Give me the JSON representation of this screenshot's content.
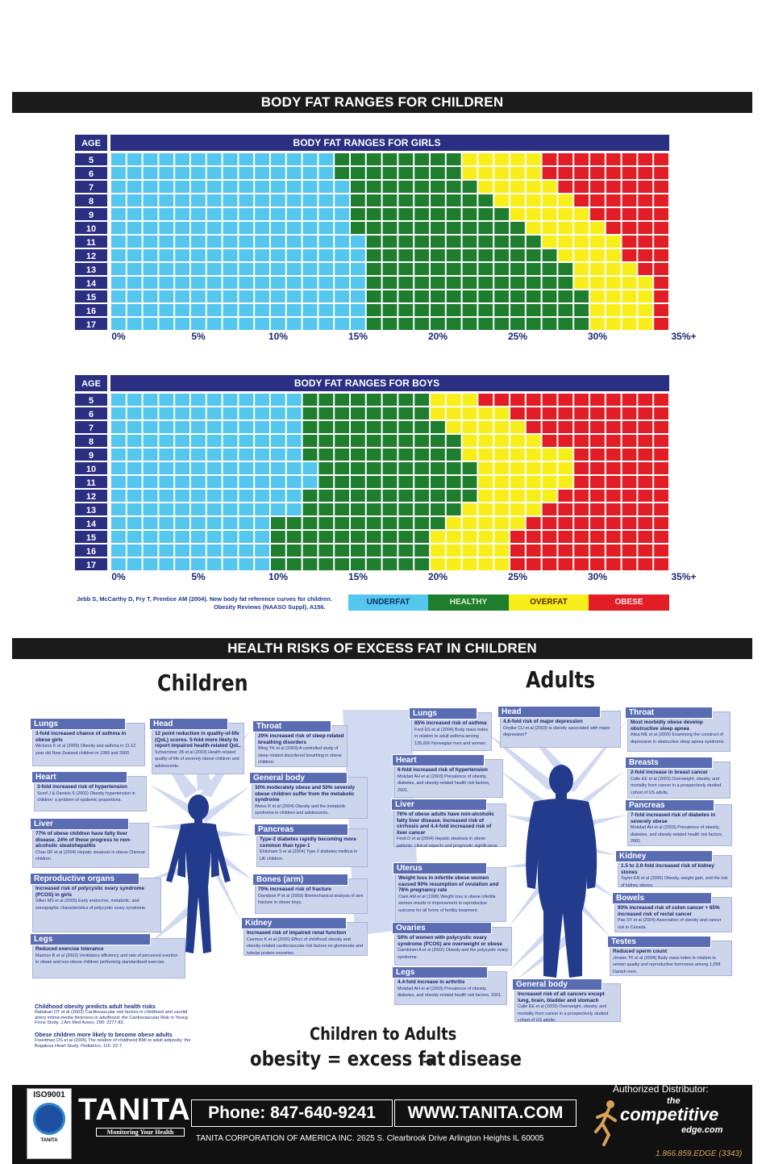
{
  "banner_top": "BODY FAT RANGES FOR CHILDREN",
  "banner_health": "HEALTH RISKS OF EXCESS FAT IN CHILDREN",
  "colors": {
    "underfat": "#55c6ee",
    "healthy": "#1f7d2e",
    "overfat": "#f7ee1a",
    "obese": "#e21d26",
    "header": "#2a2f82",
    "panel": "#5a6db3"
  },
  "chart_data": [
    {
      "type": "heatmap",
      "title": "BODY FAT RANGES FOR GIRLS",
      "ylabel": "AGE",
      "ages": [
        "5",
        "6",
        "7",
        "8",
        "9",
        "10",
        "11",
        "12",
        "13",
        "14",
        "15",
        "16",
        "17"
      ],
      "x_ticks": [
        "0%",
        "5%",
        "10%",
        "15%",
        "20%",
        "25%",
        "30%",
        "35%+"
      ],
      "xlim": [
        0,
        35
      ],
      "thresholds_percent": [
        {
          "age": "5",
          "healthy": 13.8,
          "overfat": 21.8,
          "obese": 26.8
        },
        {
          "age": "6",
          "healthy": 13.8,
          "overfat": 21.8,
          "obese": 26.8
        },
        {
          "age": "7",
          "healthy": 14.8,
          "overfat": 22.8,
          "obese": 27.8
        },
        {
          "age": "8",
          "healthy": 14.8,
          "overfat": 23.8,
          "obese": 28.8
        },
        {
          "age": "9",
          "healthy": 14.8,
          "overfat": 24.8,
          "obese": 29.8
        },
        {
          "age": "10",
          "healthy": 14.8,
          "overfat": 25.8,
          "obese": 30.8
        },
        {
          "age": "11",
          "healthy": 15.8,
          "overfat": 26.8,
          "obese": 31.8
        },
        {
          "age": "12",
          "healthy": 15.8,
          "overfat": 27.8,
          "obese": 31.8
        },
        {
          "age": "13",
          "healthy": 15.8,
          "overfat": 28.8,
          "obese": 32.8
        },
        {
          "age": "14",
          "healthy": 15.8,
          "overfat": 28.8,
          "obese": 33.8
        },
        {
          "age": "15",
          "healthy": 15.8,
          "overfat": 29.8,
          "obese": 33.8
        },
        {
          "age": "16",
          "healthy": 15.8,
          "overfat": 29.8,
          "obese": 33.8
        },
        {
          "age": "17",
          "healthy": 15.8,
          "overfat": 29.8,
          "obese": 33.8
        }
      ]
    },
    {
      "type": "heatmap",
      "title": "BODY FAT RANGES FOR BOYS",
      "ylabel": "AGE",
      "ages": [
        "5",
        "6",
        "7",
        "8",
        "9",
        "10",
        "11",
        "12",
        "13",
        "14",
        "15",
        "16",
        "17"
      ],
      "x_ticks": [
        "0%",
        "5%",
        "10%",
        "15%",
        "20%",
        "25%",
        "30%",
        "35%+"
      ],
      "xlim": [
        0,
        35
      ],
      "thresholds_percent": [
        {
          "age": "5",
          "healthy": 11.8,
          "overfat": 19.8,
          "obese": 22.8
        },
        {
          "age": "6",
          "healthy": 11.8,
          "overfat": 19.8,
          "obese": 24.8
        },
        {
          "age": "7",
          "healthy": 11.8,
          "overfat": 20.8,
          "obese": 25.8
        },
        {
          "age": "8",
          "healthy": 11.8,
          "overfat": 21.8,
          "obese": 26.8
        },
        {
          "age": "9",
          "healthy": 11.8,
          "overfat": 21.8,
          "obese": 28.8
        },
        {
          "age": "10",
          "healthy": 12.8,
          "overfat": 22.8,
          "obese": 28.8
        },
        {
          "age": "11",
          "healthy": 12.8,
          "overfat": 22.8,
          "obese": 28.8
        },
        {
          "age": "12",
          "healthy": 11.8,
          "overfat": 22.8,
          "obese": 27.8
        },
        {
          "age": "13",
          "healthy": 11.8,
          "overfat": 21.8,
          "obese": 26.8
        },
        {
          "age": "14",
          "healthy": 9.8,
          "overfat": 20.8,
          "obese": 25.8
        },
        {
          "age": "15",
          "healthy": 9.8,
          "overfat": 19.8,
          "obese": 24.8
        },
        {
          "age": "16",
          "healthy": 9.8,
          "overfat": 19.8,
          "obese": 24.8
        },
        {
          "age": "17",
          "healthy": 9.8,
          "overfat": 19.8,
          "obese": 24.8
        }
      ]
    }
  ],
  "legend": [
    "UNDERFAT",
    "HEALTHY",
    "OVERFAT",
    "OBESE"
  ],
  "citation_line1": "Jebb S, McCarthy D, Fry T, Prentice AM (2004). New body fat reference curves for children.",
  "citation_line2": "Obesity Reviews (NAASO Suppl), A156.",
  "children_title": "Children",
  "adults_title": "Adults",
  "child_risks": [
    {
      "name": "Lungs",
      "text": "3-fold increased chance of asthma in obese girls",
      "cite": "Wickens K et al (2005) Obesity and asthma in 11-12 year old New Zealand children in 1989 and 2000."
    },
    {
      "name": "Head",
      "text": "12 point reduction in quality-of-life (QoL) scores. 5-fold more likely to report impaired health-related QoL.",
      "cite": "Schwimmer JB et al (2003) Health-related quality of life of severely obese children and adolescents."
    },
    {
      "name": "Throat",
      "text": "20% increased risk of sleep-related breathing disorders",
      "cite": "Wing YK et al (2003) A controlled study of sleep related disordered breathing in obese children."
    },
    {
      "name": "Heart",
      "text": "3-fold increased risk of hypertension",
      "cite": "Sorof J & Daniels S (2002) Obesity hypertension in children: a problem of epidemic proportions."
    },
    {
      "name": "General body",
      "text": "30% moderately obese and 50% severely obese children suffer from the metabolic syndrome",
      "cite": "Weiss R et al (2004) Obesity and the metabolic syndrome in children and adolescents."
    },
    {
      "name": "Liver",
      "text": "77% of obese children have fatty liver disease. 24% of these progress to non-alcoholic steatohepatitis",
      "cite": "Chan DF et al (2004) Hepatic steatosis in obese Chinese children."
    },
    {
      "name": "Pancreas",
      "text": "Type-2 diabetes rapidly becoming more common than type-1",
      "cite": "Ehtisham S et al (2004) Type 2 diabetes mellitus in UK children."
    },
    {
      "name": "Reproductive organs",
      "text": "Increased risk of polycystic ovary syndrome (PCOS) in girls",
      "cite": "Sillen MS et al (2003) Early endocrine, metabolic, and sonographic characteristics of polycystic ovary syndrome."
    },
    {
      "name": "Bones (arm)",
      "text": "70% increased risk of fracture",
      "cite": "Davidson P et al (2003) Biomechanical analysis of arm fracture in obese boys."
    },
    {
      "name": "Kidney",
      "text": "Increased risk of impaired renal function",
      "cite": "Csernus K et al (2005) Effect of childhood obesity and obesity-related cardiovascular risk factors on glomerular and tubular protein excretion."
    },
    {
      "name": "Legs",
      "text": "Reduced exercise tolerance",
      "cite": "Marinov B et al (2002) Ventilatory efficiency and rate of perceived exertion in obese and non-obese children performing standardized exercise."
    }
  ],
  "adult_risks": [
    {
      "name": "Lungs",
      "text": "85% increased risk of asthma",
      "cite": "Ford ES et al (2004) Body mass index in relation to adult asthma among 135,000 Norwegian men and women."
    },
    {
      "name": "Head",
      "text": "4.6-fold risk of major depression",
      "cite": "Onyike CU et al (2003) Is obesity associated with major depression?"
    },
    {
      "name": "Throat",
      "text": "Most morbidly obese develop obstructive sleep apnea",
      "cite": "Alisa ME et al (2005) Examining the construct of depression in obstructive sleep apnea syndrome."
    },
    {
      "name": "Heart",
      "text": "6-fold increased risk of hypertension",
      "cite": "Mokdad AH et al (2003) Prevalence of obesity, diabetes, and obesity-related health risk factors, 2001."
    },
    {
      "name": "Breasts",
      "text": "2-fold increase in breast cancer",
      "cite": "Calle EE et al (2003) Overweight, obesity, and mortality from cancer in a prospectively studied cohort of US adults."
    },
    {
      "name": "Liver",
      "text": "76% of obese adults have non-alcoholic fatty liver disease. Increased risk of cirrhosis and 4.4-fold increased risk of liver cancer",
      "cite": "Festi D et al (2004) Hepatic steatosis in obese patients: clinical aspects and prognostic significance."
    },
    {
      "name": "Pancreas",
      "text": "7-fold increased risk of diabetes in severely obese",
      "cite": "Mokdad AH et al (2003) Prevalence of obesity, diabetes, and obesity-related health risk factors, 2001."
    },
    {
      "name": "Uterus",
      "text": "Weight loss in infertile obese women caused 90% resumption of ovulation and 78% pregnancy rate",
      "cite": "Clark AM et al (1998) Weight loss in obese infertile women results in improvement in reproductive outcome for all forms of fertility treatment."
    },
    {
      "name": "Kidney",
      "text": "1.5 to 2.0-fold increased risk of kidney stones",
      "cite": "Taylor EN et al (2005) Obesity, weight gain, and the risk of kidney stones."
    },
    {
      "name": "Ovaries",
      "text": "50% of women with polycystic ovary syndrome (PCOS) are overweight or obese",
      "cite": "Gambineri A et al (2002) Obesity and the polycystic ovary syndrome."
    },
    {
      "name": "Bowels",
      "text": "93% increased risk of colon cancer + 65% increased risk of rectal cancer",
      "cite": "Pan SY et al (2004) Association of obesity and cancer risk in Canada."
    },
    {
      "name": "Testes",
      "text": "Reduced sperm count",
      "cite": "Jensen TK et al (2004) Body mass index in relation to semen quality and reproductive hormones among 1,558 Danish men."
    },
    {
      "name": "Legs",
      "text": "4.4-fold increase in arthritis",
      "cite": "Mokdad AH et al (2003) Prevalence of obesity, diabetes, and obesity-related health risk factors, 2001."
    },
    {
      "name": "General body",
      "text": "Increased risk of all cancers except lung, brain, bladder and stomach",
      "cite": "Calle EE et al (2003) Overweight, obesity, and mortality from cancer in a prospectively studied cohort of US adults."
    }
  ],
  "notes": [
    {
      "title": "Childhood obesity predicts adult health risks",
      "text": "Raitakari OT et al (2003) Cardiovascular risk factors in childhood and carotid artery intima-media thickness in adulthood: the Cardiovascular Risk in Young Finns Study. J Am Med Assoc; 290: 2277-83."
    },
    {
      "title": "Obese children more likely to become obese adults",
      "text": "Freedman DS et al (2005) The relation of childhood BMI to adult adiposity: the Bogalusa Heart Study. Pediatrics; 115: 22-7."
    }
  ],
  "slogan_top": "Children to Adults",
  "slogan_left": "obesity = excess fat",
  "slogan_right": "disease",
  "footer": {
    "iso": "ISO9001",
    "brand": "TANITA",
    "brand_tagline": "Monitoring Your Health",
    "phone": "Phone: 847-640-9241",
    "website": "WWW.TANITA.COM",
    "address": "TANITA CORPORATION OF AMERICA INC. 2625 S. Clearbrook Drive Arlington Heights IL 60005",
    "distributor_label": "Authorized Distributor:",
    "distributor_small": "the",
    "distributor_name": "competitive",
    "distributor_name2": "edge.com",
    "distributor_phone": "1.866.859.EDGE (3343)"
  }
}
